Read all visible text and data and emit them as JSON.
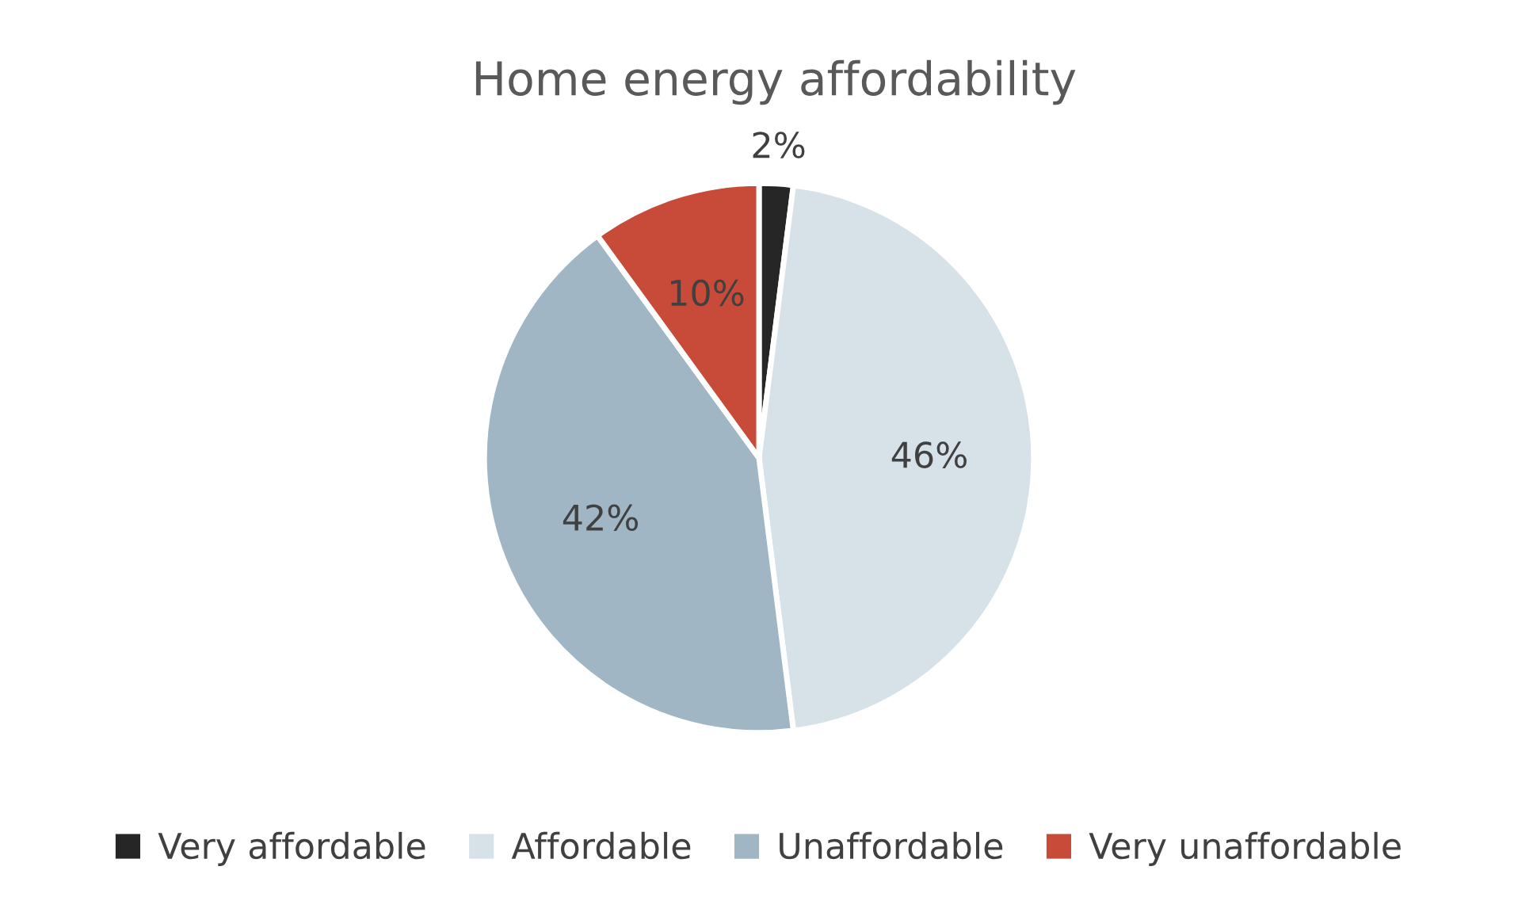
{
  "chart_data": {
    "type": "pie",
    "title": "Home energy affordability",
    "categories": [
      "Very affordable",
      "Affordable",
      "Unaffordable",
      "Very unaffordable"
    ],
    "values": [
      2,
      46,
      42,
      10
    ],
    "colors": [
      "#262626",
      "#d6e1e8",
      "#a0b6c5",
      "#c84b3a"
    ],
    "value_labels": [
      "2%",
      "46%",
      "42%",
      "10%"
    ],
    "legend": "bottom"
  }
}
